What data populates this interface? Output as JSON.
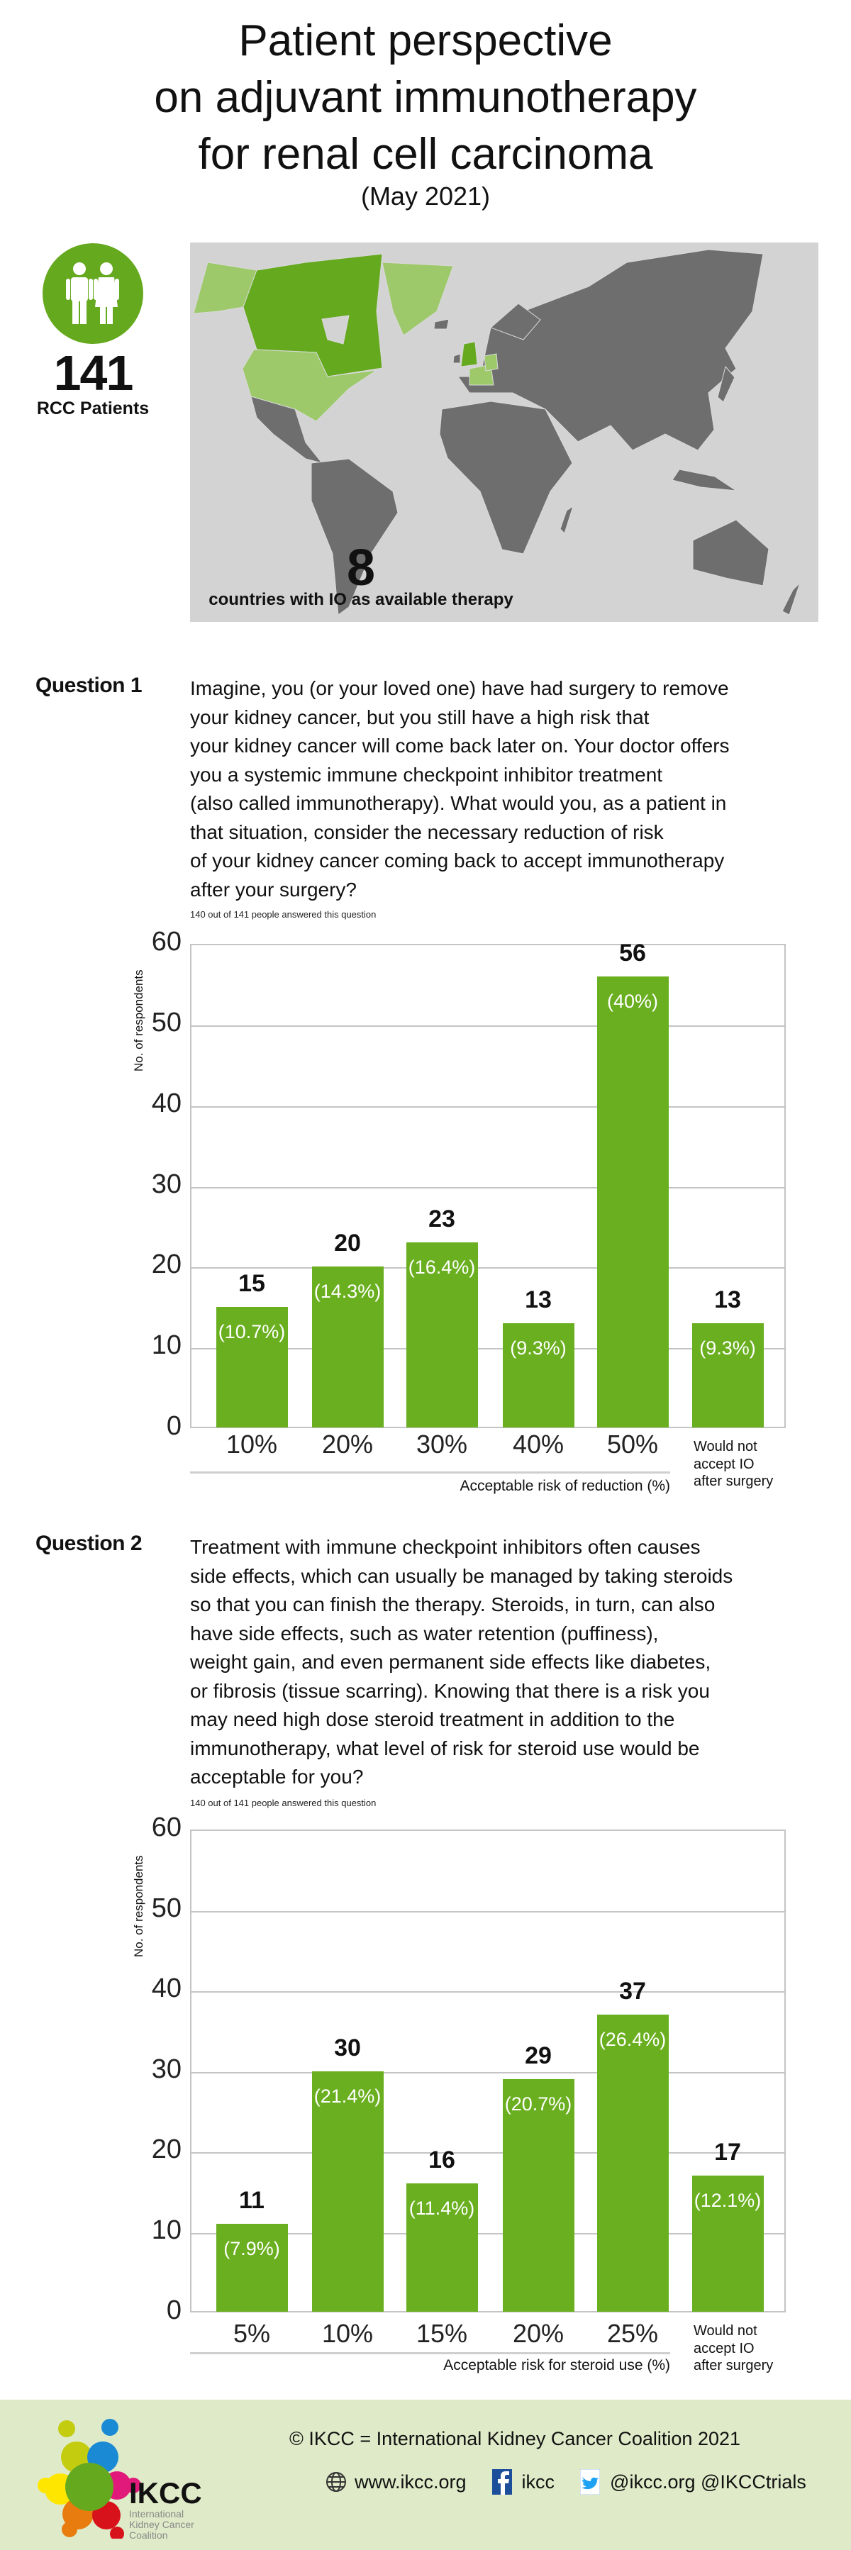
{
  "header": {
    "title_lines": [
      "Patient perspective",
      "on adjuvant immunotherapy",
      "for renal cell carcinoma"
    ],
    "subtitle": "(May 2021)"
  },
  "patients": {
    "count": "141",
    "label": "RCC Patients",
    "icon": "people-icon"
  },
  "map": {
    "count": "8",
    "caption": "countries with IO as available therapy",
    "colors": {
      "ocean": "#d3d3d3",
      "land": "#6e6e6e",
      "highlight_dark": "#65a91f",
      "highlight_light": "#9dc96a"
    }
  },
  "questions": [
    {
      "label": "Question 1",
      "text_lines": [
        "Imagine, you (or your loved one) have had surgery to remove",
        "your kidney cancer, but you still have a high risk that",
        "your kidney cancer will come back later on. Your doctor offers",
        "you a systemic immune checkpoint inhibitor treatment",
        "(also called immunotherapy). What would you, as a patient in",
        "that situation, consider the necessary reduction of risk",
        "of your kidney cancer coming back to accept immunotherapy",
        "after your surgery?"
      ],
      "answered": "140 out of 141 people answered this question"
    },
    {
      "label": "Question 2",
      "text_lines": [
        "Treatment with immune checkpoint inhibitors often causes",
        "side effects, which can usually be managed by taking steroids",
        "so that you can finish the therapy. Steroids, in turn, can also",
        "have side effects, such as water retention (puffiness),",
        "weight gain, and even permanent side effects like diabetes,",
        "or fibrosis (tissue scarring). Knowing that there is a risk you",
        "may need high dose steroid treatment in addition to the",
        "immunotherapy, what level of risk for steroid use would be",
        "acceptable for you?"
      ],
      "answered": "140 out of 141 people answered this question"
    }
  ],
  "chart_data": [
    {
      "type": "bar",
      "categories": [
        "10%",
        "20%",
        "30%",
        "40%",
        "50%",
        "Would not accept IO after surgery"
      ],
      "category_label_lines": {
        "5": [
          "Would not",
          "accept IO",
          "after surgery"
        ]
      },
      "values": [
        15,
        20,
        23,
        13,
        56,
        13
      ],
      "value_labels": [
        "15",
        "20",
        "23",
        "13",
        "56",
        "13"
      ],
      "percent_labels": [
        "(10.7%)",
        "(14.3%)",
        "(16.4%)",
        "(9.3%)",
        "(40%)",
        "(9.3%)"
      ],
      "ylabel": "No. of respondents",
      "xlabel": "Acceptable risk of reduction (%)",
      "ylim": [
        0,
        60
      ],
      "yticks": [
        0,
        10,
        20,
        30,
        40,
        50,
        60
      ],
      "grid": true,
      "bar_color": "#6aaf1f"
    },
    {
      "type": "bar",
      "categories": [
        "5%",
        "10%",
        "15%",
        "20%",
        "25%",
        "Would not accept IO after surgery"
      ],
      "category_label_lines": {
        "5": [
          "Would not",
          "accept IO",
          "after surgery"
        ]
      },
      "values": [
        11,
        30,
        16,
        29,
        37,
        17
      ],
      "value_labels": [
        "11",
        "30",
        "16",
        "29",
        "37",
        "17"
      ],
      "percent_labels": [
        "(7.9%)",
        "(21.4%)",
        "(11.4%)",
        "(20.7%)",
        "(26.4%)",
        "(12.1%)"
      ],
      "ylabel": "No. of respondents",
      "xlabel": "Acceptable risk for steroid use (%)",
      "ylim": [
        0,
        60
      ],
      "yticks": [
        0,
        10,
        20,
        30,
        40,
        50,
        60
      ],
      "grid": true,
      "bar_color": "#6aaf1f"
    }
  ],
  "footer": {
    "copyright": "© IKCC = International Kidney Cancer Coalition 2021",
    "website": "www.ikcc.org",
    "facebook": "ikcc",
    "twitter": "@ikcc.org @IKCCtrials",
    "logo_text": "IKCC",
    "logo_subtext": "International Kidney Cancer Coalition",
    "background": "#dfebc8"
  }
}
